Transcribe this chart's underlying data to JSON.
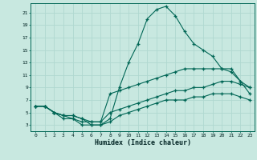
{
  "xlabel": "Humidex (Indice chaleur)",
  "bg_color": "#c8e8e0",
  "grid_color": "#b0d8d0",
  "line_color": "#006655",
  "xlim": [
    -0.5,
    23.5
  ],
  "ylim": [
    2.0,
    22.5
  ],
  "xticks": [
    0,
    1,
    2,
    3,
    4,
    5,
    6,
    7,
    8,
    9,
    10,
    11,
    12,
    13,
    14,
    15,
    16,
    17,
    18,
    19,
    20,
    21,
    22,
    23
  ],
  "yticks": [
    3,
    5,
    7,
    9,
    11,
    13,
    15,
    17,
    19,
    21
  ],
  "curve1_x": [
    0,
    1,
    2,
    3,
    4,
    5,
    6,
    7,
    8,
    9,
    10,
    11,
    12,
    13,
    14,
    15,
    16,
    17,
    18,
    19,
    20,
    21,
    22,
    23
  ],
  "curve1_y": [
    6,
    6,
    5,
    4,
    4,
    3,
    3,
    3,
    4,
    9,
    13,
    16,
    20,
    21.5,
    22,
    20.5,
    18,
    16,
    15,
    14,
    12,
    11.5,
    10,
    9
  ],
  "curve2_x": [
    0,
    1,
    2,
    3,
    4,
    5,
    6,
    7,
    8,
    9,
    10,
    11,
    12,
    13,
    14,
    15,
    16,
    17,
    18,
    19,
    20,
    21,
    22,
    23
  ],
  "curve2_y": [
    6,
    6,
    5,
    4.5,
    4,
    3.5,
    3.5,
    3.5,
    8,
    8.5,
    9,
    9.5,
    10,
    10.5,
    11,
    11.5,
    12,
    12,
    12,
    12,
    12,
    12,
    10,
    8
  ],
  "curve3_x": [
    0,
    1,
    2,
    3,
    4,
    5,
    6,
    7,
    8,
    9,
    10,
    11,
    12,
    13,
    14,
    15,
    16,
    17,
    18,
    19,
    20,
    21,
    22,
    23
  ],
  "curve3_y": [
    6,
    6,
    5,
    4.5,
    4.5,
    4,
    3.5,
    3.5,
    5,
    5.5,
    6,
    6.5,
    7,
    7.5,
    8,
    8.5,
    8.5,
    9,
    9,
    9.5,
    10,
    10,
    9.5,
    9
  ],
  "curve4_x": [
    0,
    1,
    2,
    3,
    4,
    5,
    6,
    7,
    8,
    9,
    10,
    11,
    12,
    13,
    14,
    15,
    16,
    17,
    18,
    19,
    20,
    21,
    22,
    23
  ],
  "curve4_y": [
    6,
    6,
    5,
    4.5,
    4.5,
    4,
    3,
    3,
    3.5,
    4.5,
    5,
    5.5,
    6,
    6.5,
    7,
    7,
    7,
    7.5,
    7.5,
    8,
    8,
    8,
    7.5,
    7
  ]
}
